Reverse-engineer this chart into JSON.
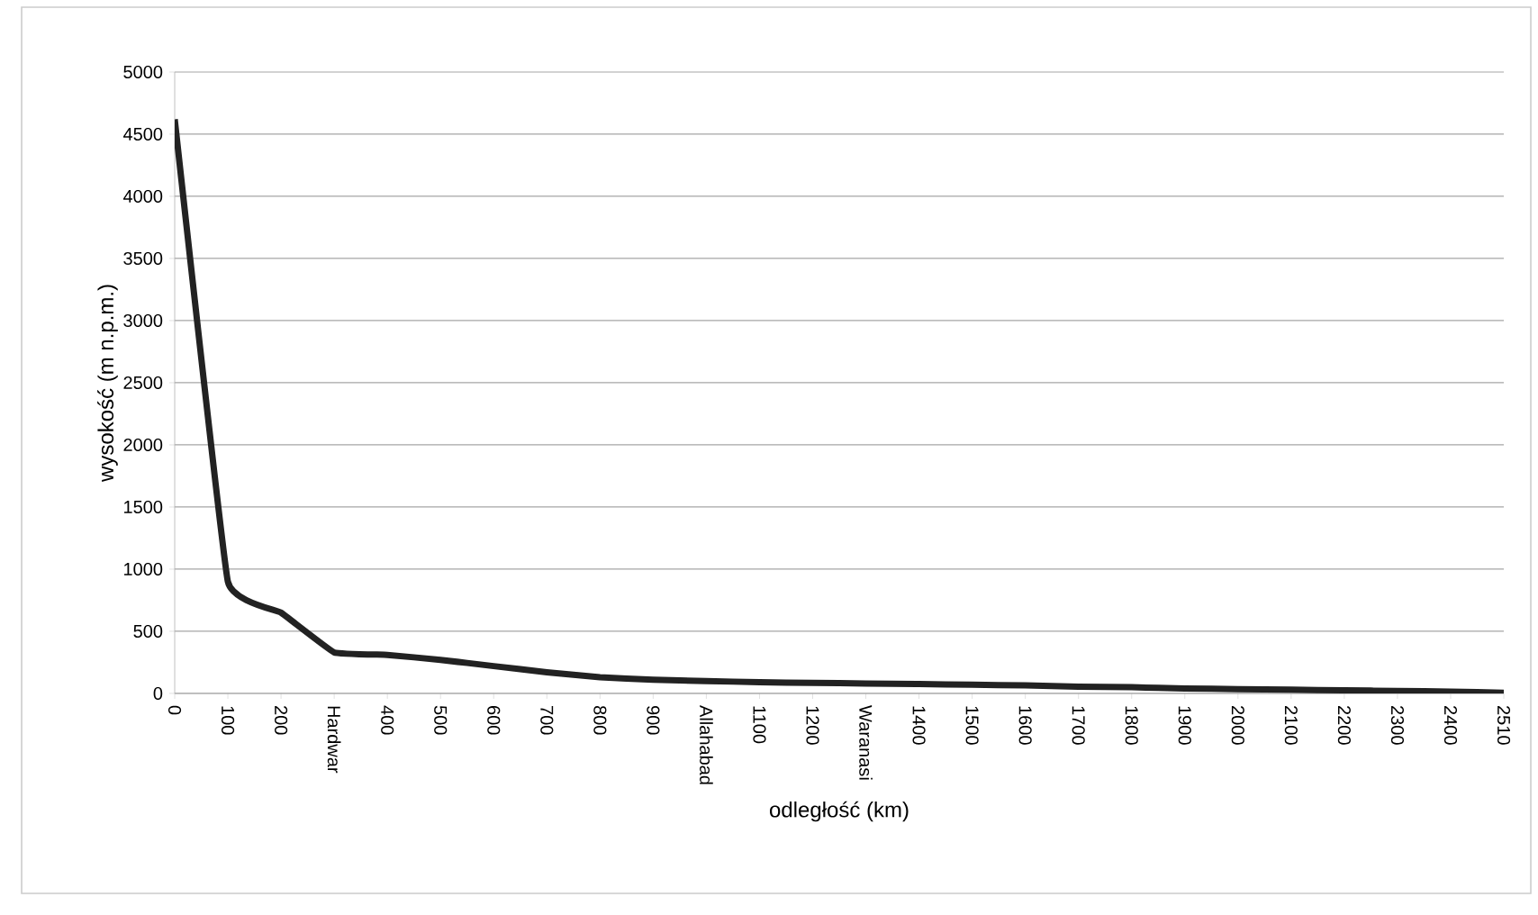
{
  "chart_data": {
    "type": "line",
    "xlabel": "odległość (km)",
    "ylabel": "wysokość (m n.p.m.)",
    "categories": [
      "0",
      "100",
      "200",
      "Hardwar",
      "400",
      "500",
      "600",
      "700",
      "800",
      "900",
      "Allahabad",
      "1100",
      "1200",
      "Waranasi",
      "1400",
      "1500",
      "1600",
      "1700",
      "1800",
      "1900",
      "2000",
      "2100",
      "2200",
      "2300",
      "2400",
      "2510"
    ],
    "series": [
      {
        "color": "#222222",
        "values": [
          4620,
          900,
          650,
          330,
          310,
          270,
          220,
          170,
          130,
          110,
          100,
          90,
          85,
          80,
          75,
          70,
          65,
          55,
          50,
          40,
          35,
          30,
          25,
          20,
          15,
          5
        ]
      }
    ],
    "ylim": [
      0,
      5000
    ],
    "yticks": [
      0,
      500,
      1000,
      1500,
      2000,
      2500,
      3000,
      3500,
      4000,
      4500,
      5000
    ],
    "grid": "y",
    "marker": "none",
    "line_style": "solid"
  }
}
